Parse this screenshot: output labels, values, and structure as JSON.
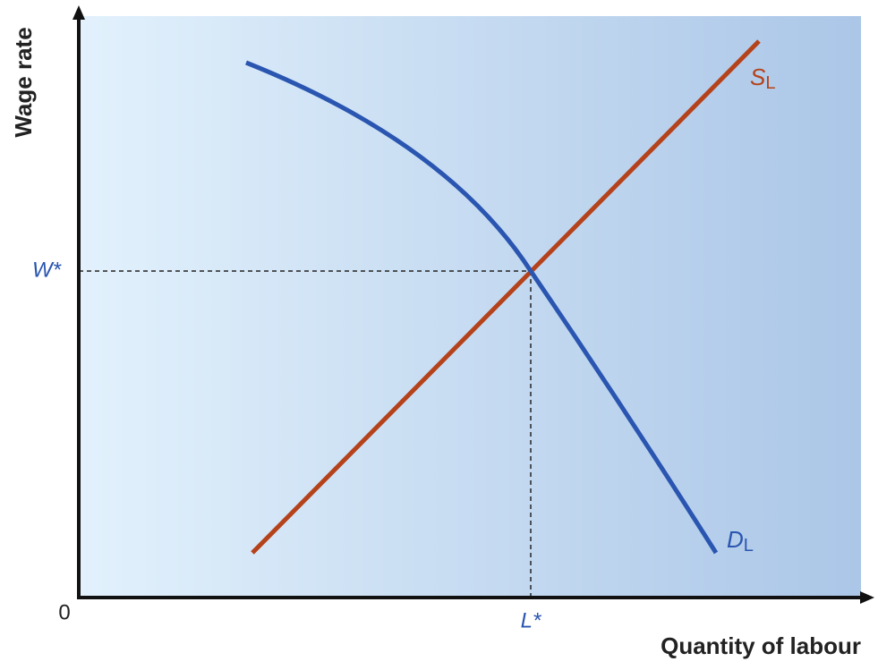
{
  "axes": {
    "y_label": "Wage rate",
    "x_label": "Quantity of labour",
    "origin": "0"
  },
  "curves": [
    {
      "label": "S",
      "subscript": "L"
    },
    {
      "label": "D",
      "subscript": "L"
    }
  ],
  "equilibrium": {
    "wage": "W*",
    "labour": "L*"
  }
}
